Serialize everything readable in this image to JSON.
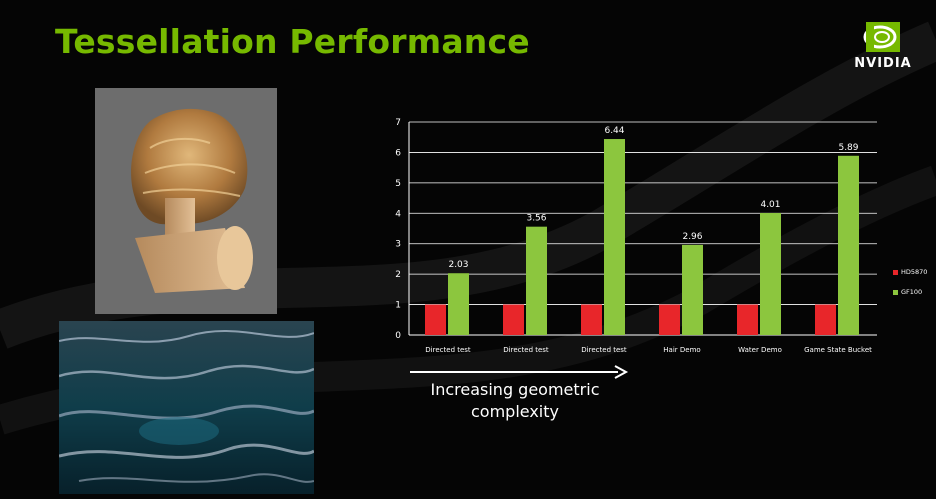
{
  "slide": {
    "title": "Tessellation Performance",
    "brand": "NVIDIA",
    "caption_line1": "Increasing geometric",
    "caption_line2": "complexity"
  },
  "colors": {
    "title": "#76b900",
    "hd5870": "#e8262a",
    "gf100": "#8cc63e"
  },
  "icons": {
    "logo": "nvidia-eye-icon",
    "arrow": "right-arrow-icon"
  },
  "chart_data": {
    "type": "bar",
    "categories": [
      "Directed test",
      "Directed test",
      "Directed test",
      "Hair Demo",
      "Water Demo",
      "Game State Bucket"
    ],
    "series": [
      {
        "name": "HD5870",
        "values": [
          1,
          1,
          1,
          1,
          1,
          1
        ]
      },
      {
        "name": "GF100",
        "values": [
          2.03,
          3.56,
          6.44,
          2.96,
          4.01,
          5.89
        ]
      }
    ],
    "data_labels": [
      "2.03",
      "3.56",
      "6.44",
      "2.96",
      "4.01",
      "5.89"
    ],
    "yticks": [
      "0",
      "1",
      "2",
      "3",
      "4",
      "5",
      "6",
      "7"
    ],
    "ylim": [
      0,
      7
    ],
    "grid": true,
    "legend": "right"
  }
}
